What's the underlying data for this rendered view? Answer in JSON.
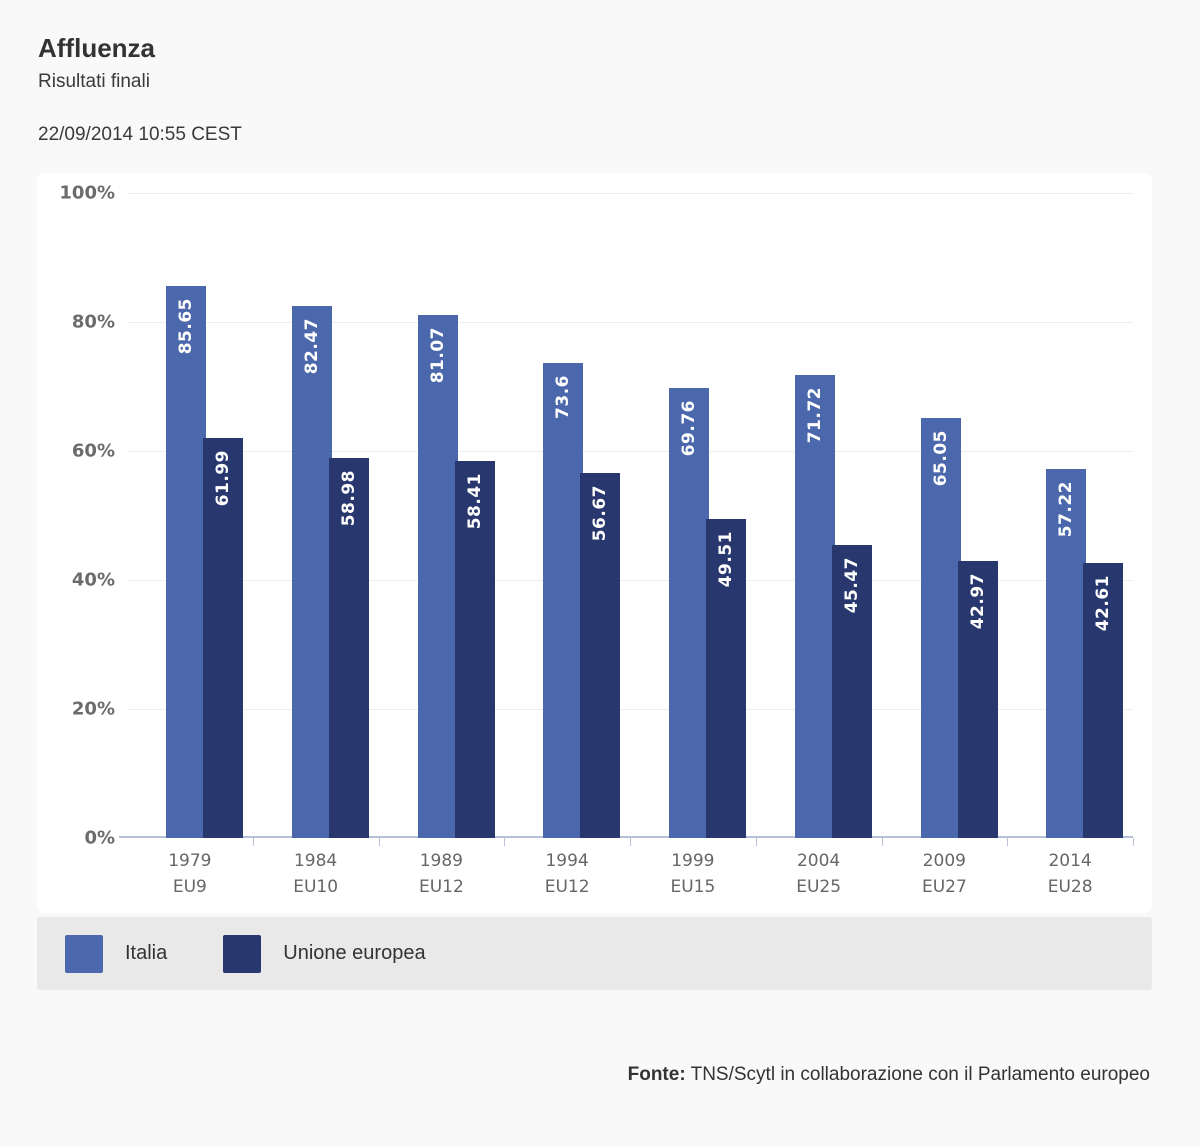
{
  "header": {
    "title": "Affluenza",
    "subtitle": "Risultati finali",
    "timestamp": "22/09/2014 10:55 CEST"
  },
  "chart_data": {
    "type": "bar",
    "title": "Affluenza",
    "categories": [
      {
        "year": "1979",
        "group": "EU9"
      },
      {
        "year": "1984",
        "group": "EU10"
      },
      {
        "year": "1989",
        "group": "EU12"
      },
      {
        "year": "1994",
        "group": "EU12"
      },
      {
        "year": "1999",
        "group": "EU15"
      },
      {
        "year": "2004",
        "group": "EU25"
      },
      {
        "year": "2009",
        "group": "EU27"
      },
      {
        "year": "2014",
        "group": "EU28"
      }
    ],
    "series": [
      {
        "name": "Italia",
        "color": "#4c68ac",
        "values": [
          85.65,
          82.47,
          81.07,
          73.6,
          69.76,
          71.72,
          65.05,
          57.22
        ]
      },
      {
        "name": "Unione europea",
        "color": "#28386e",
        "values": [
          61.99,
          58.98,
          58.41,
          56.67,
          49.51,
          45.47,
          42.97,
          42.61
        ]
      }
    ],
    "xlabel": "",
    "ylabel": "",
    "ylim": [
      0,
      100
    ],
    "yticks": [
      {
        "label": "0%",
        "value": 0
      },
      {
        "label": "20%",
        "value": 20
      },
      {
        "label": "40%",
        "value": 40
      },
      {
        "label": "60%",
        "value": 60
      },
      {
        "label": "80%",
        "value": 80
      },
      {
        "label": "100%",
        "value": 100
      }
    ],
    "grid": true,
    "legend_position": "bottom",
    "value_labels": "rotated-vertical-white-inside-bar-top"
  },
  "footer": {
    "source_label": "Fonte:",
    "source_text": "TNS/Scytl in collaborazione con il Parlamento europeo"
  },
  "colors": {
    "page_bg": "#f9f9f9",
    "card_bg": "#ffffff",
    "legend_bg": "#e9e9e9",
    "grid_line": "#ededed",
    "axis_line": "#b6c1d6",
    "axis_text": "#666666"
  }
}
